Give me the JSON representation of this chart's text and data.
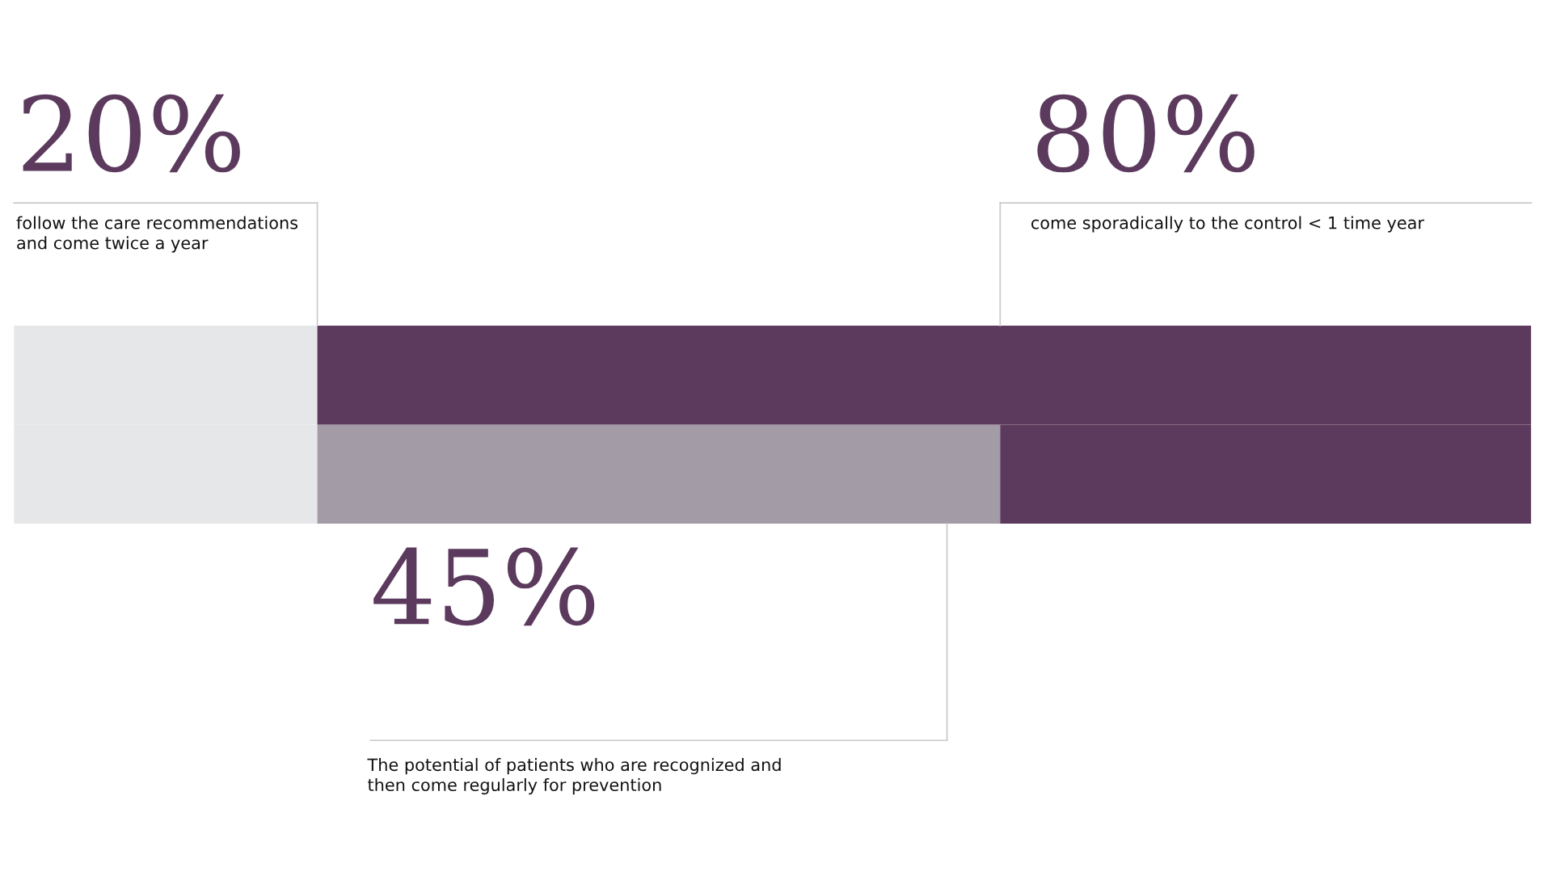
{
  "chart_data": {
    "type": "bar",
    "orientation": "horizontal",
    "stacked": true,
    "categories": [
      null,
      null
    ],
    "xlim": [
      0,
      100
    ],
    "series": [
      {
        "color": "#e6e7e9",
        "values": [
          20,
          20
        ],
        "value_labels": [
          "20%",
          null
        ]
      },
      {
        "color": "#a39ca6",
        "values": [
          null,
          45
        ],
        "value_labels": [
          null,
          "45%"
        ]
      },
      {
        "color": "#5c3a5d",
        "values": [
          80,
          35
        ],
        "value_labels": [
          "80%",
          null
        ]
      }
    ],
    "annotations": [
      "follow the care recommendations\nand come twice a year",
      "The potential of patients who are recognized and\nthen come regularly for prevention",
      "come sporadically to the control < 1 time year"
    ]
  }
}
